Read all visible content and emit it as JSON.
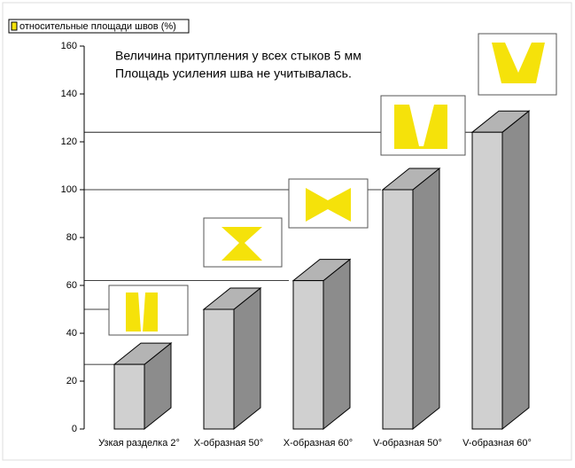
{
  "chart_data": {
    "type": "bar3d",
    "annotations": [
      "Величина притупления у всех стыков 5 мм",
      "Площадь усиления шва не учитывалась."
    ],
    "categories": [
      "Узкая разделка 2°",
      "X-образная 50°",
      "X-образная 60°",
      "V-образная 50°",
      "V-образная 60°"
    ],
    "series": [
      {
        "name": "относительные площади швов (%)",
        "color": "#d0d0d0",
        "values": [
          27,
          50,
          62,
          100,
          124
        ]
      }
    ],
    "ylim": [
      0,
      160
    ],
    "yticks": [
      0,
      20,
      40,
      60,
      80,
      100,
      120,
      140,
      160
    ]
  }
}
